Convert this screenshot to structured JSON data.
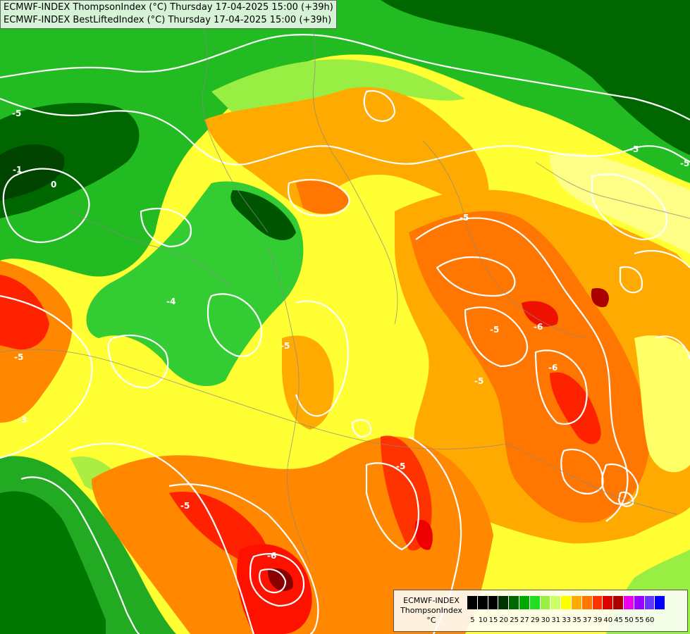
{
  "header": {
    "line1": "ECMWF-INDEX ThompsonIndex (°C) Thursday 17-04-2025 15:00 (+39h)",
    "line2": "ECMWF-INDEX BestLiftedIndex (°C) Thursday 17-04-2025 15:00 (+39h)"
  },
  "legend": {
    "title_line1": "ECMWF-INDEX",
    "title_line2": "ThompsonIndex",
    "unit": "°C",
    "ticks": [
      "5",
      "10",
      "15",
      "20",
      "25",
      "27",
      "29",
      "30",
      "31",
      "33",
      "35",
      "37",
      "39",
      "40",
      "45",
      "50",
      "55",
      "60"
    ],
    "colors": [
      "#000000",
      "#000000",
      "#000000",
      "#003300",
      "#006600",
      "#00aa00",
      "#22dd22",
      "#99ee44",
      "#ccff66",
      "#ffff00",
      "#ffaa00",
      "#ff7700",
      "#ff3300",
      "#dd0000",
      "#aa0000",
      "#ee00ee",
      "#9900ff",
      "#6633ff",
      "#0000ff"
    ]
  },
  "contour_labels": [
    "-5",
    "-5",
    "-5",
    "-6",
    "-5",
    "-6",
    "-5",
    "-5",
    "-5",
    "-6",
    "-5",
    "-4",
    "-5",
    "-3",
    "-1",
    "0",
    "-5"
  ],
  "colors": {
    "dark_green": "#005500",
    "green": "#00aa00",
    "light_green": "#33cc33",
    "yellow_green": "#aaee44",
    "pale_yellow": "#ffff66",
    "yellow": "#ffff00",
    "orange": "#ffaa00",
    "dark_orange": "#ff7700",
    "red": "#ff2200",
    "dark_red": "#aa0000"
  }
}
